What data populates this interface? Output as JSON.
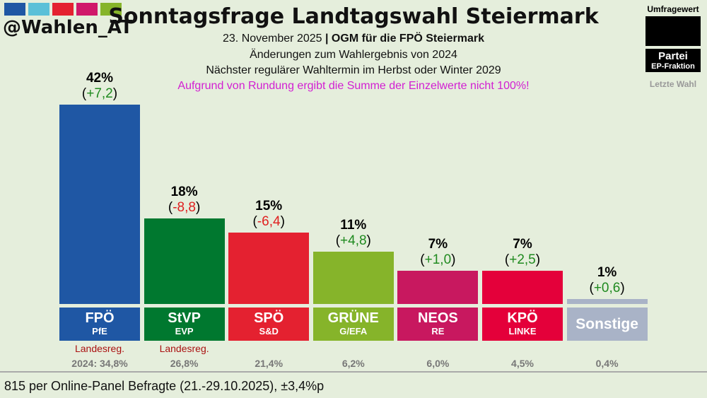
{
  "header": {
    "handle": "@Wahlen_AT",
    "logo_colors": [
      "#1f57a4",
      "#5bc0d8",
      "#e42130",
      "#d0186a",
      "#86b42a"
    ],
    "title": "Sonntagsfrage Landtagswahl Steiermark",
    "date": "23. November 2025",
    "separator": "|",
    "source": "OGM für die FPÖ Steiermark",
    "line2": "Änderungen zum Wahlergebnis von 2024",
    "line3": "Nächster regulärer Wahltermin im Herbst oder Winter 2029",
    "note": "Aufgrund von Rundung ergibt die Summe der Einzelwerte nicht 100%!"
  },
  "legend": {
    "value": "Umfragewert",
    "party": "Partei",
    "fraction": "EP-Fraktion",
    "last": "Letzte Wahl"
  },
  "chart_data": {
    "type": "bar",
    "ylim": [
      0,
      42
    ],
    "categories": [
      "FPÖ",
      "StVP",
      "SPÖ",
      "GRÜNE",
      "NEOS",
      "KPÖ",
      "Sonstige"
    ],
    "ep_groups": [
      "PfE",
      "EVP",
      "S&D",
      "G/EFA",
      "RE",
      "LINKE",
      ""
    ],
    "values": [
      42,
      18,
      15,
      11,
      7,
      7,
      1
    ],
    "value_labels": [
      "42%",
      "18%",
      "15%",
      "11%",
      "7%",
      "7%",
      "1%"
    ],
    "changes": [
      "+7,2",
      "-8,8",
      "-6,4",
      "+4,8",
      "+1,0",
      "+2,5",
      "+0,6"
    ],
    "government": [
      "Landesreg.",
      "Landesreg.",
      "",
      "",
      "",
      "",
      ""
    ],
    "previous": [
      "2024: 34,8%",
      "26,8%",
      "21,4%",
      "6,2%",
      "6,0%",
      "4,5%",
      "0,4%"
    ],
    "colors": [
      "#1f57a4",
      "#00782f",
      "#e42130",
      "#86b42a",
      "#c8185f",
      "#e4003a",
      "#a9b3c7"
    ],
    "change_colors": {
      "positive": "#1f8a1f",
      "negative": "#e02020"
    }
  },
  "footer": "815 per Online-Panel Befragte (21.-29.10.2025), ±3,4%p"
}
